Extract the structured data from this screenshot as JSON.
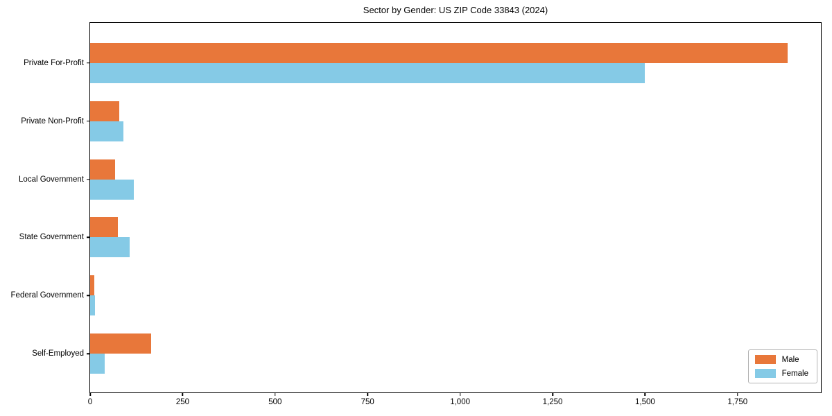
{
  "chart_data": {
    "type": "bar",
    "orientation": "horizontal",
    "title": "Sector by Gender: US ZIP Code 33843 (2024)",
    "categories": [
      "Private For-Profit",
      "Private Non-Profit",
      "Local Government",
      "State Government",
      "Federal Government",
      "Self-Employed"
    ],
    "series": [
      {
        "name": "Male",
        "color": "#E8773A",
        "values": [
          1885,
          78,
          68,
          74,
          12,
          164
        ]
      },
      {
        "name": "Female",
        "color": "#85CAE6",
        "values": [
          1500,
          90,
          118,
          107,
          13,
          40
        ]
      }
    ],
    "xlabel": "",
    "ylabel": "",
    "xlim": [
      0,
      1979
    ],
    "x_ticks": [
      0,
      250,
      500,
      750,
      1000,
      1250,
      1500,
      1750
    ],
    "x_tick_labels": [
      "0",
      "250",
      "500",
      "750",
      "1,000",
      "1,250",
      "1,500",
      "1,750"
    ],
    "grid": false,
    "legend_position": "lower right",
    "axis_color": "#000000",
    "background_color": "#ffffff"
  },
  "legend": {
    "items": [
      {
        "label": "Male",
        "color": "#E8773A"
      },
      {
        "label": "Female",
        "color": "#85CAE6"
      }
    ]
  }
}
